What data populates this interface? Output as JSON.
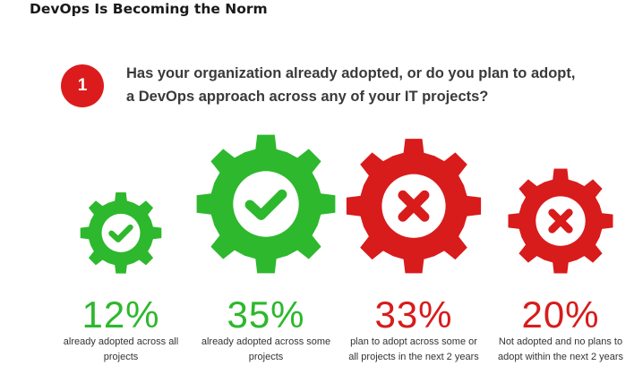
{
  "page_title": "DevOps Is Becoming the Norm",
  "badge_number": "1",
  "question": {
    "line1": "Has your organization already adopted, or do you plan to adopt,",
    "line2": "a DevOps approach across any of your IT projects?"
  },
  "colors": {
    "green": "#2db82d",
    "red": "#d81b1b"
  },
  "chart_data": {
    "type": "bar",
    "unit": "%",
    "categories": [
      "already adopted across all projects",
      "already adopted across some projects",
      "plan to adopt across some or all projects in the next 2 years",
      "Not adopted and no plans to adopt within the next 2 years"
    ],
    "values": [
      12,
      35,
      33,
      20
    ],
    "items": [
      {
        "value": 12,
        "label": "12%",
        "desc1": "already adopted across all",
        "desc2": "projects",
        "color": "green",
        "icon": "check-icon"
      },
      {
        "value": 35,
        "label": "35%",
        "desc1": "already adopted across some",
        "desc2": "projects",
        "color": "green",
        "icon": "check-icon"
      },
      {
        "value": 33,
        "label": "33%",
        "desc1": "plan to adopt across some or",
        "desc2": "all projects in the next 2 years",
        "color": "red",
        "icon": "x-icon"
      },
      {
        "value": 20,
        "label": "20%",
        "desc1": "Not adopted and no plans to",
        "desc2": "adopt within the next 2 years",
        "color": "red",
        "icon": "x-icon"
      }
    ]
  }
}
